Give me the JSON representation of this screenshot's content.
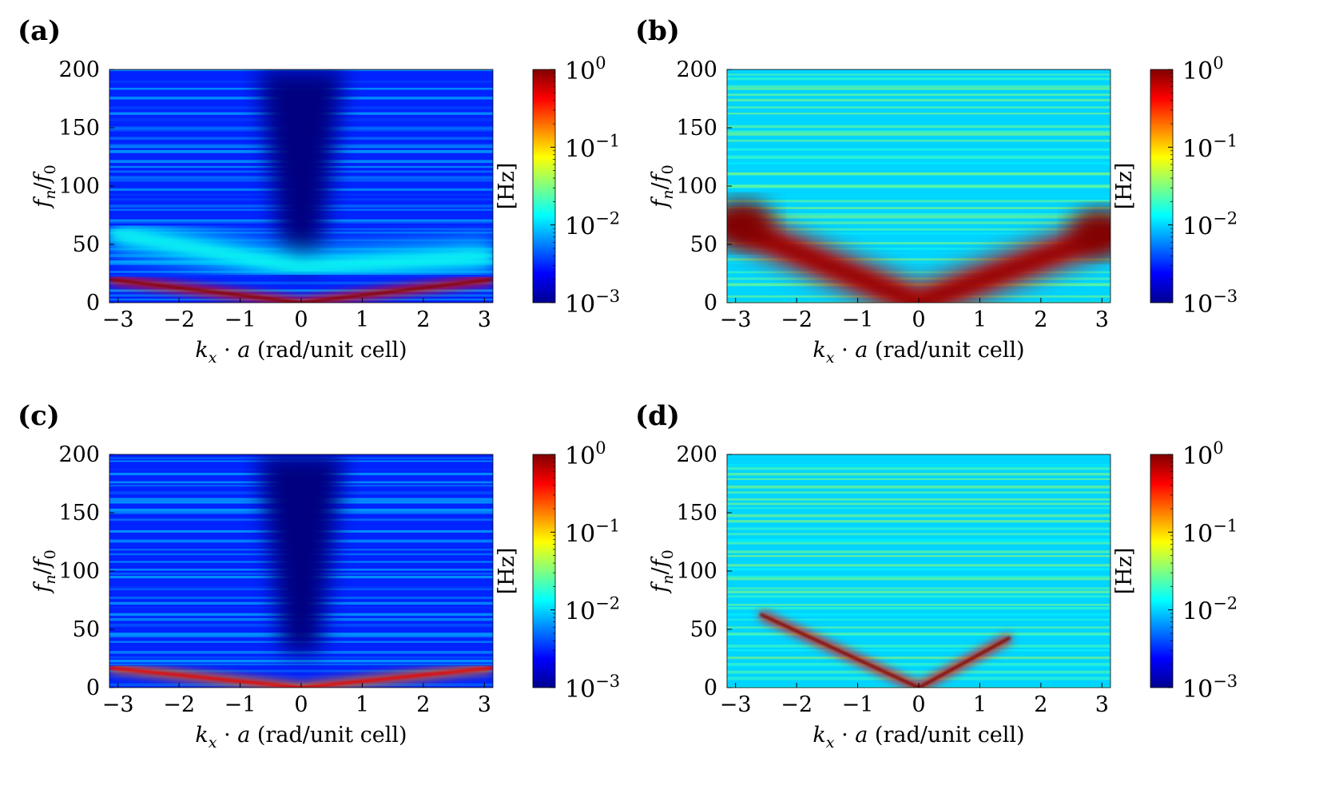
{
  "chart_data": [
    {
      "panel": "(a)",
      "type": "heatmap",
      "xlabel": "k_x · a (rad/unit cell)",
      "ylabel": "f_n/f_0",
      "xlim": [
        -3.14,
        3.14
      ],
      "ylim": [
        0,
        200
      ],
      "xticks": [
        -3,
        -2,
        -1,
        0,
        1,
        2,
        3
      ],
      "yticks": [
        0,
        50,
        100,
        150,
        200
      ],
      "colorbar": {
        "scale": "log",
        "range": [
          0.001,
          1
        ],
        "ticks": [
          "10^0",
          "10^-1",
          "10^-2",
          "10^-3"
        ],
        "unit": "[Hz]"
      },
      "features": [
        {
          "name": "dispersion branch",
          "points": [
            [
              -3.14,
              20
            ],
            [
              0,
              0
            ],
            [
              3.14,
              20
            ]
          ],
          "level": 1.0
        },
        {
          "name": "broad band",
          "points": [
            [
              -3.14,
              60
            ],
            [
              0,
              30
            ],
            [
              3.14,
              40
            ]
          ],
          "level": 0.01
        }
      ],
      "background_level": 0.003
    },
    {
      "panel": "(b)",
      "type": "heatmap",
      "xlabel": "k_x · a (rad/unit cell)",
      "ylabel": "f_n/f_0",
      "xlim": [
        -3.14,
        3.14
      ],
      "ylim": [
        0,
        200
      ],
      "xticks": [
        -3,
        -2,
        -1,
        0,
        1,
        2,
        3
      ],
      "yticks": [
        0,
        50,
        100,
        150,
        200
      ],
      "colorbar": {
        "scale": "log",
        "range": [
          0.001,
          1
        ],
        "ticks": [
          "10^0",
          "10^-1",
          "10^-2",
          "10^-3"
        ],
        "unit": "[Hz]"
      },
      "features": [
        {
          "name": "V-shaped branch",
          "points": [
            [
              -3.14,
              68
            ],
            [
              0,
              0
            ],
            [
              3.14,
              60
            ]
          ],
          "level": 0.6
        },
        {
          "name": "hot spot left",
          "points": [
            [
              -2.9,
              68
            ]
          ],
          "level": 1.0
        },
        {
          "name": "hot spot right",
          "points": [
            [
              3.0,
              60
            ]
          ],
          "level": 1.0
        }
      ],
      "background_level": 0.01
    },
    {
      "panel": "(c)",
      "type": "heatmap",
      "xlabel": "k_x · a (rad/unit cell)",
      "ylabel": "f_n/f_0",
      "xlim": [
        -3.14,
        3.14
      ],
      "ylim": [
        0,
        200
      ],
      "xticks": [
        -3,
        -2,
        -1,
        0,
        1,
        2,
        3
      ],
      "yticks": [
        0,
        50,
        100,
        150,
        200
      ],
      "colorbar": {
        "scale": "log",
        "range": [
          0.001,
          1
        ],
        "ticks": [
          "10^0",
          "10^-1",
          "10^-2",
          "10^-3"
        ],
        "unit": "[Hz]"
      },
      "features": [
        {
          "name": "dispersion branch",
          "points": [
            [
              -3.14,
              17
            ],
            [
              0,
              0
            ],
            [
              3.14,
              17
            ]
          ],
          "level": 0.5
        }
      ],
      "background_level": 0.003
    },
    {
      "panel": "(d)",
      "type": "heatmap",
      "xlabel": "k_x · a (rad/unit cell)",
      "ylabel": "f_n/f_0",
      "xlim": [
        -3.14,
        3.14
      ],
      "ylim": [
        0,
        200
      ],
      "xticks": [
        -3,
        -2,
        -1,
        0,
        1,
        2,
        3
      ],
      "yticks": [
        0,
        50,
        100,
        150,
        200
      ],
      "colorbar": {
        "scale": "log",
        "range": [
          0.001,
          1
        ],
        "ticks": [
          "10^0",
          "10^-1",
          "10^-2",
          "10^-3"
        ],
        "unit": "[Hz]"
      },
      "features": [
        {
          "name": "dispersion branch",
          "points": [
            [
              -2.6,
              63
            ],
            [
              0,
              0
            ],
            [
              1.5,
              43
            ]
          ],
          "level": 1.0
        },
        {
          "name": "band edge",
          "points": [
            [
              -3.14,
              63
            ],
            [
              3.14,
              63
            ]
          ],
          "level": 0.1
        },
        {
          "name": "band edge",
          "points": [
            [
              -3.14,
              126
            ],
            [
              3.14,
              126
            ]
          ],
          "level": 0.003
        },
        {
          "name": "band edge",
          "points": [
            [
              -3.14,
              197
            ],
            [
              3.14,
              197
            ]
          ],
          "level": 0.02
        }
      ],
      "background_level": 0.01
    }
  ]
}
